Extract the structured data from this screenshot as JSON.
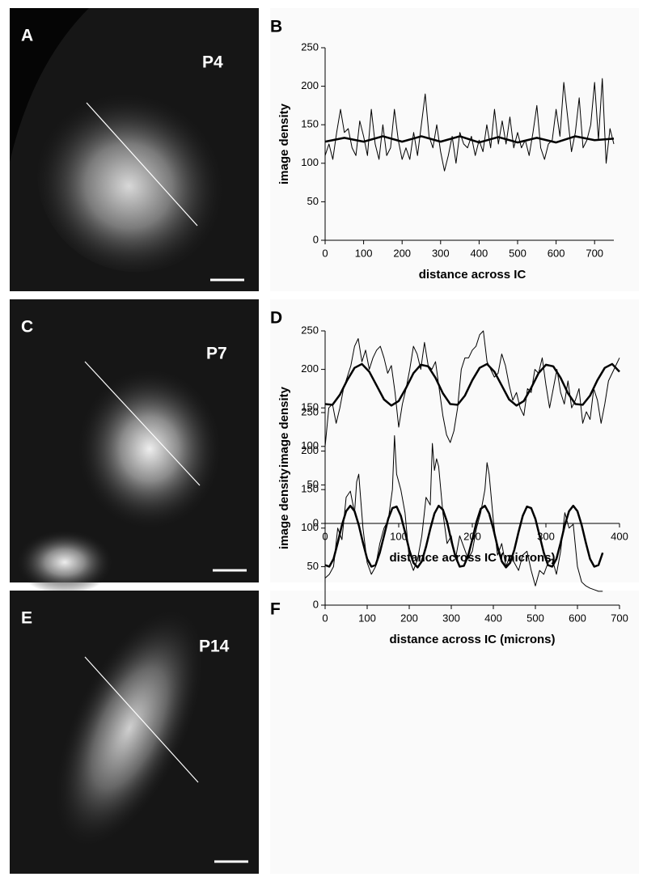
{
  "panels": [
    {
      "letter": "A",
      "age": "P4"
    },
    {
      "letter": "C",
      "age": "P7"
    },
    {
      "letter": "E",
      "age": "P14"
    }
  ],
  "chart_data": [
    {
      "type": "line",
      "panel_label": "B",
      "ylabel": "image density",
      "xlabel": "distance across IC",
      "xlim": [
        0,
        750
      ],
      "xticks": [
        0,
        100,
        200,
        300,
        400,
        500,
        600,
        700
      ],
      "ylim": [
        0,
        250
      ],
      "yticks": [
        0,
        50,
        100,
        150,
        200,
        250
      ],
      "series": [
        {
          "color": "#000000",
          "line_width": 1,
          "x": [
            0,
            10,
            20,
            30,
            40,
            50,
            60,
            70,
            80,
            90,
            100,
            110,
            120,
            130,
            140,
            150,
            160,
            170,
            180,
            190,
            200,
            210,
            220,
            230,
            240,
            250,
            260,
            270,
            280,
            290,
            300,
            310,
            320,
            330,
            340,
            350,
            360,
            370,
            380,
            390,
            400,
            410,
            420,
            430,
            440,
            450,
            460,
            470,
            480,
            490,
            500,
            510,
            520,
            530,
            540,
            550,
            560,
            570,
            580,
            590,
            600,
            610,
            620,
            630,
            640,
            650,
            660,
            670,
            680,
            690,
            700,
            710,
            720,
            730,
            740,
            750
          ],
          "values": [
            110,
            125,
            105,
            140,
            170,
            140,
            145,
            120,
            110,
            155,
            135,
            110,
            170,
            125,
            105,
            150,
            110,
            120,
            170,
            130,
            105,
            120,
            105,
            140,
            110,
            150,
            190,
            135,
            120,
            150,
            115,
            90,
            110,
            135,
            100,
            140,
            125,
            120,
            135,
            110,
            130,
            115,
            150,
            120,
            170,
            125,
            155,
            125,
            160,
            120,
            140,
            120,
            130,
            110,
            140,
            175,
            120,
            105,
            125,
            130,
            170,
            135,
            205,
            160,
            115,
            140,
            185,
            120,
            130,
            150,
            205,
            130,
            210,
            100,
            145,
            125
          ]
        },
        {
          "color": "#000000",
          "line_width": 2.5,
          "x": [
            0,
            50,
            100,
            150,
            200,
            250,
            300,
            350,
            400,
            450,
            500,
            550,
            600,
            650,
            700,
            750
          ],
          "values": [
            128,
            133,
            128,
            135,
            128,
            135,
            128,
            135,
            127,
            134,
            127,
            133,
            127,
            135,
            130,
            132
          ]
        }
      ]
    },
    {
      "type": "line",
      "panel_label": "D",
      "ylabel": "image density",
      "xlabel": "distance across IC (microns)",
      "xlim": [
        0,
        400
      ],
      "xticks": [
        0,
        100,
        200,
        300,
        400
      ],
      "ylim": [
        0,
        250
      ],
      "yticks": [
        0,
        50,
        100,
        150,
        200,
        250
      ],
      "series": [
        {
          "color": "#000000",
          "line_width": 1,
          "x": [
            0,
            5,
            10,
            15,
            20,
            25,
            30,
            35,
            40,
            45,
            50,
            55,
            60,
            65,
            70,
            75,
            80,
            85,
            90,
            95,
            100,
            105,
            110,
            115,
            120,
            125,
            130,
            135,
            140,
            145,
            150,
            155,
            160,
            165,
            170,
            175,
            180,
            185,
            190,
            195,
            200,
            205,
            210,
            215,
            220,
            225,
            230,
            235,
            240,
            245,
            250,
            255,
            260,
            265,
            270,
            275,
            280,
            285,
            290,
            295,
            300,
            305,
            310,
            315,
            320,
            325,
            330,
            335,
            340,
            345,
            350,
            355,
            360,
            365,
            370,
            375,
            380,
            385,
            390,
            395,
            400
          ],
          "values": [
            100,
            150,
            155,
            130,
            150,
            175,
            190,
            205,
            230,
            240,
            210,
            225,
            200,
            215,
            225,
            230,
            215,
            195,
            205,
            170,
            125,
            155,
            175,
            200,
            230,
            220,
            200,
            235,
            205,
            200,
            210,
            175,
            140,
            115,
            105,
            120,
            150,
            200,
            215,
            215,
            225,
            230,
            245,
            250,
            210,
            200,
            190,
            195,
            220,
            205,
            180,
            160,
            170,
            150,
            140,
            175,
            170,
            200,
            195,
            215,
            180,
            150,
            175,
            200,
            170,
            155,
            185,
            150,
            160,
            175,
            130,
            145,
            135,
            175,
            160,
            130,
            155,
            185,
            195,
            205,
            215
          ]
        },
        {
          "color": "#000000",
          "line_width": 2.5,
          "x": [
            0,
            10,
            20,
            30,
            40,
            50,
            60,
            70,
            80,
            90,
            100,
            110,
            120,
            130,
            140,
            150,
            160,
            170,
            180,
            190,
            200,
            210,
            220,
            230,
            240,
            250,
            260,
            270,
            280,
            290,
            300,
            310,
            320,
            330,
            340,
            350,
            360,
            370,
            380,
            390,
            400
          ],
          "values": [
            155,
            154,
            167,
            186,
            202,
            207,
            197,
            179,
            161,
            153,
            159,
            176,
            195,
            206,
            204,
            189,
            169,
            155,
            154,
            166,
            186,
            202,
            207,
            197,
            179,
            161,
            153,
            159,
            176,
            195,
            206,
            204,
            189,
            169,
            155,
            154,
            166,
            186,
            202,
            207,
            197
          ]
        }
      ]
    },
    {
      "type": "line",
      "panel_label": "F",
      "ylabel": "image density",
      "xlabel": "distance across IC (microns)",
      "xlim": [
        0,
        700
      ],
      "xticks": [
        0,
        100,
        200,
        300,
        400,
        500,
        600,
        700
      ],
      "ylim": [
        0,
        250
      ],
      "yticks": [
        0,
        50,
        100,
        150,
        200,
        250
      ],
      "series": [
        {
          "color": "#000000",
          "line_width": 1,
          "x": [
            0,
            10,
            20,
            30,
            40,
            50,
            60,
            70,
            75,
            80,
            90,
            100,
            110,
            120,
            130,
            140,
            150,
            160,
            165,
            170,
            180,
            190,
            200,
            210,
            220,
            230,
            240,
            250,
            255,
            260,
            265,
            270,
            280,
            290,
            300,
            310,
            320,
            330,
            340,
            350,
            360,
            370,
            380,
            385,
            390,
            400,
            410,
            420,
            430,
            440,
            450,
            460,
            470,
            480,
            490,
            500,
            510,
            520,
            530,
            540,
            550,
            560,
            570,
            580,
            590,
            600,
            610,
            620,
            630,
            640,
            650,
            660
          ],
          "values": [
            35,
            40,
            50,
            100,
            85,
            140,
            148,
            120,
            160,
            170,
            100,
            55,
            40,
            50,
            80,
            100,
            110,
            150,
            220,
            170,
            150,
            120,
            60,
            45,
            60,
            90,
            140,
            130,
            210,
            175,
            190,
            180,
            120,
            80,
            90,
            60,
            90,
            75,
            60,
            70,
            100,
            120,
            150,
            185,
            170,
            110,
            65,
            80,
            50,
            65,
            55,
            45,
            65,
            70,
            45,
            25,
            45,
            40,
            55,
            60,
            40,
            70,
            120,
            100,
            105,
            50,
            30,
            25,
            22,
            20,
            18,
            18
          ]
        },
        {
          "color": "#000000",
          "line_width": 2.5,
          "x": [
            0,
            10,
            20,
            30,
            40,
            50,
            60,
            70,
            80,
            90,
            100,
            110,
            120,
            130,
            140,
            150,
            160,
            170,
            180,
            190,
            200,
            210,
            220,
            230,
            240,
            250,
            260,
            270,
            280,
            290,
            300,
            310,
            320,
            330,
            340,
            350,
            360,
            370,
            380,
            390,
            400,
            410,
            420,
            430,
            440,
            450,
            460,
            470,
            480,
            490,
            500,
            510,
            520,
            530,
            540,
            550,
            560,
            570,
            580,
            590,
            600,
            610,
            620,
            630,
            640,
            650,
            660
          ],
          "values": [
            52,
            50,
            60,
            81,
            104,
            122,
            129,
            122,
            104,
            81,
            60,
            50,
            52,
            68,
            90,
            112,
            126,
            128,
            116,
            95,
            72,
            55,
            49,
            57,
            76,
            99,
            119,
            129,
            124,
            108,
            84,
            63,
            50,
            51,
            64,
            85,
            108,
            125,
            129,
            119,
            99,
            76,
            57,
            49,
            55,
            72,
            95,
            116,
            128,
            126,
            112,
            90,
            68,
            52,
            50,
            60,
            81,
            104,
            122,
            129,
            122,
            104,
            81,
            60,
            50,
            52,
            68
          ]
        }
      ]
    }
  ]
}
